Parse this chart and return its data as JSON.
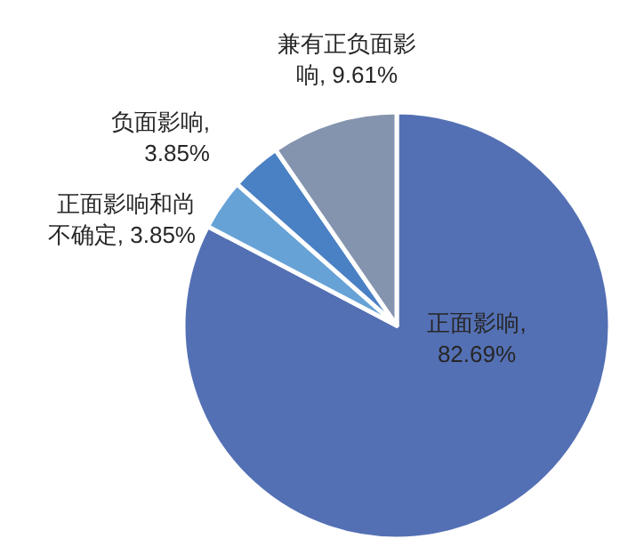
{
  "chart_data": {
    "type": "pie",
    "categories": [
      "正面影响",
      "正面影响和尚不确定",
      "负面影响",
      "兼有正负面影响"
    ],
    "values": [
      82.69,
      3.85,
      3.85,
      9.61
    ],
    "value_labels": [
      ", 82.69%",
      ", 3.85%",
      ", 3.85%",
      ", 9.61%"
    ],
    "colors": [
      "#5470b4",
      "#67a2d6",
      "#4a80c4",
      "#8594ae"
    ]
  }
}
